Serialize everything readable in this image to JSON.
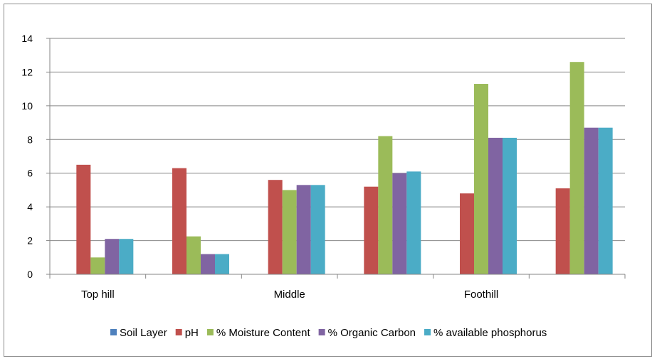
{
  "chart_data": {
    "type": "bar",
    "categories": [
      "Top hill",
      "",
      "Middle",
      "",
      "Foothill",
      ""
    ],
    "series": [
      {
        "name": "Soil Layer",
        "color": "#4f81bd",
        "values": [
          0,
          0,
          0,
          0,
          0,
          0
        ]
      },
      {
        "name": "pH",
        "color": "#c0504d",
        "values": [
          6.5,
          6.3,
          5.6,
          5.2,
          4.8,
          5.1
        ]
      },
      {
        "name": "% Moisture Content",
        "color": "#9bbb59",
        "values": [
          1.0,
          2.25,
          5.0,
          8.2,
          11.3,
          12.6
        ]
      },
      {
        "name": "% Organic Carbon",
        "color": "#8064a2",
        "values": [
          2.1,
          1.2,
          5.3,
          6.0,
          8.1,
          8.7
        ]
      },
      {
        "name": "% available phosphorus",
        "color": "#4bacc6",
        "values": [
          2.1,
          1.2,
          5.3,
          6.1,
          8.1,
          8.7
        ]
      }
    ],
    "ylim": [
      0,
      14
    ],
    "yticks": [
      0,
      2,
      4,
      6,
      8,
      10,
      12,
      14
    ],
    "grid": true,
    "legend": "bottom"
  }
}
